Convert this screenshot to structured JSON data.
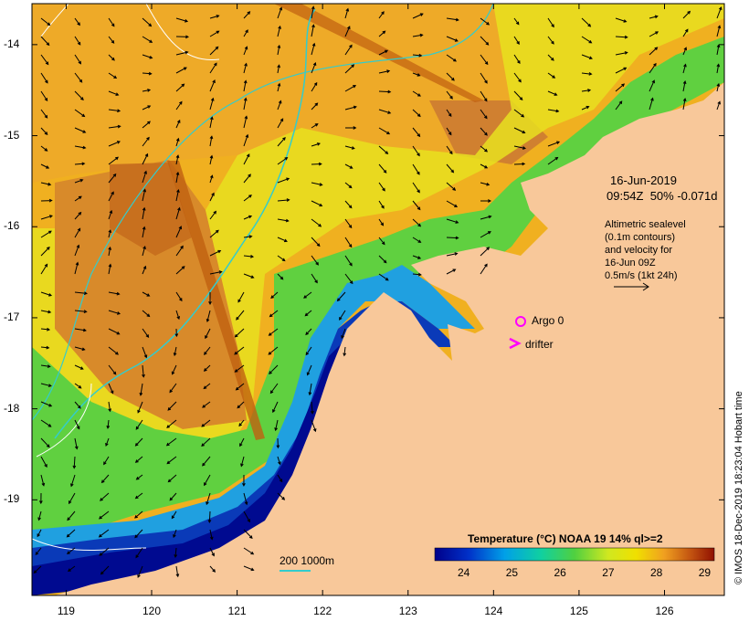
{
  "map": {
    "y_ticks": [
      "-14",
      "-15",
      "-16",
      "-17",
      "-18",
      "-19"
    ],
    "x_ticks": [
      "119",
      "120",
      "121",
      "122",
      "123",
      "124",
      "125",
      "126"
    ],
    "lon_range": [
      118.6,
      126.7
    ],
    "lat_range": [
      -20.05,
      -13.55
    ],
    "colors": {
      "land": "#f8c89a",
      "bathymetry_contour": "#33cccc",
      "coast_contour": "#ffffff",
      "argo": "#ff00ff"
    }
  },
  "info": {
    "date": "16-Jun-2019",
    "time_line": "09:54Z  50% -0.071d",
    "note_lines": [
      "Altimetric sealevel",
      "(0.1m contours)",
      "and velocity for",
      "16-Jun 09Z",
      "0.5m/s (1kt 24h)"
    ]
  },
  "markers": {
    "argo_label": "Argo 0",
    "drifter_label": "drifter",
    "scale_label": "200  1000m"
  },
  "legend": {
    "title": "Temperature (°C) NOAA 19 14% ql>=2",
    "ticks": [
      "24",
      "25",
      "26",
      "27",
      "28",
      "29"
    ],
    "range": [
      23.4,
      29.2
    ]
  },
  "credit": "© IMOS 18-Dec-2019 18:23:04 Hobart time"
}
